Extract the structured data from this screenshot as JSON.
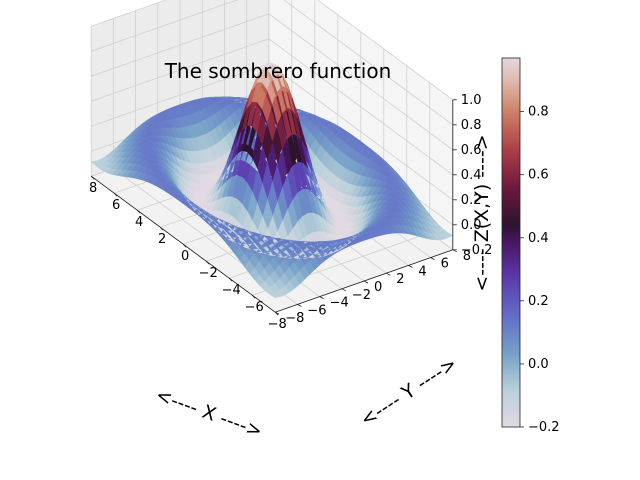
{
  "chart_data": {
    "type": "surface",
    "title": "The sombrero function",
    "function": "Z = sin(R)/R, R = sqrt(X^2 + Y^2)",
    "xlabel": "<---- X ---->",
    "ylabel": "<---- Y ---->",
    "zlabel": "<---- Z(X,Y) ---->",
    "x_range": [
      -8,
      8
    ],
    "y_range": [
      -8,
      8
    ],
    "zlim": [
      -0.2,
      1.0
    ],
    "x_ticks": [
      "−8",
      "−6",
      "−4",
      "−2",
      "0",
      "2",
      "4",
      "6",
      "8"
    ],
    "y_ticks": [
      "−8",
      "−6",
      "−4",
      "−2",
      "0",
      "2",
      "4",
      "6",
      "8"
    ],
    "z_ticks": [
      "−0.2",
      "0.0",
      "0.2",
      "0.4",
      "0.6",
      "0.8",
      "1.0"
    ],
    "colormap": "twilight",
    "colorbar": {
      "range": [
        -0.2,
        0.97
      ],
      "ticks": [
        "−0.2",
        "0.0",
        "0.2",
        "0.4",
        "0.6",
        "0.8"
      ]
    },
    "grid": true
  }
}
